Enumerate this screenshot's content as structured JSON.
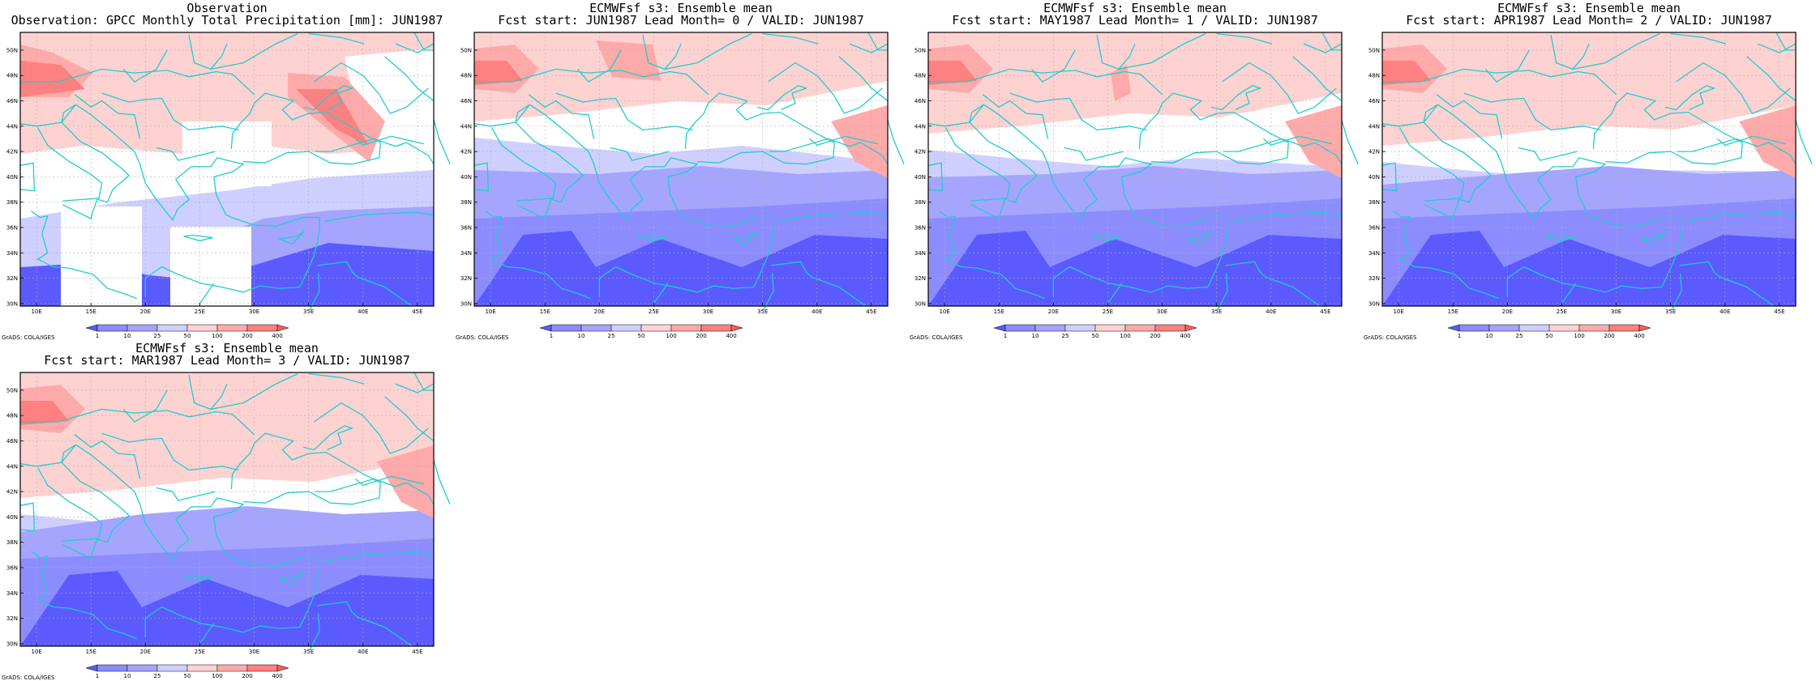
{
  "colors": {
    "cb_low": [
      "#5a5aff",
      "#8c8cff",
      "#a5a5ff",
      "#cfcfff"
    ],
    "cb_high": [
      "#ffd2d2",
      "#ffaaaa",
      "#ff8080",
      "#ff5a5a"
    ],
    "land_gap": "#ffffff",
    "coastline": "#22cccc",
    "grid": "#b0b0b0"
  },
  "axes": {
    "lat_labels": [
      "50N",
      "48N",
      "46N",
      "44N",
      "42N",
      "40N",
      "38N",
      "36N",
      "34N",
      "32N",
      "30N"
    ],
    "lon_labels": [
      "10E",
      "15E",
      "20E",
      "25E",
      "30E",
      "35E",
      "40E",
      "45E"
    ]
  },
  "colorbar": {
    "labels": [
      "1",
      "10",
      "25",
      "50",
      "100",
      "200",
      "400"
    ]
  },
  "credit": "GrADS: COLA/IGES",
  "panels": [
    {
      "title1": "Observation",
      "title2": "Observation: GPCC Monthly Total Precipitation [mm]: JUN1987"
    },
    {
      "title1": "ECMWFsf s3: Ensemble mean",
      "title2": "Fcst start: JUN1987  Lead Month= 0 / VALID: JUN1987"
    },
    {
      "title1": "ECMWFsf s3: Ensemble mean",
      "title2": "Fcst start: MAY1987  Lead Month= 1 / VALID: JUN1987"
    },
    {
      "title1": "ECMWFsf s3: Ensemble mean",
      "title2": "Fcst start: APR1987  Lead Month= 2 / VALID: JUN1987"
    },
    {
      "title1": "ECMWFsf s3: Ensemble mean",
      "title2": "Fcst start: MAR1987  Lead Month= 3 / VALID: JUN1987"
    }
  ]
}
